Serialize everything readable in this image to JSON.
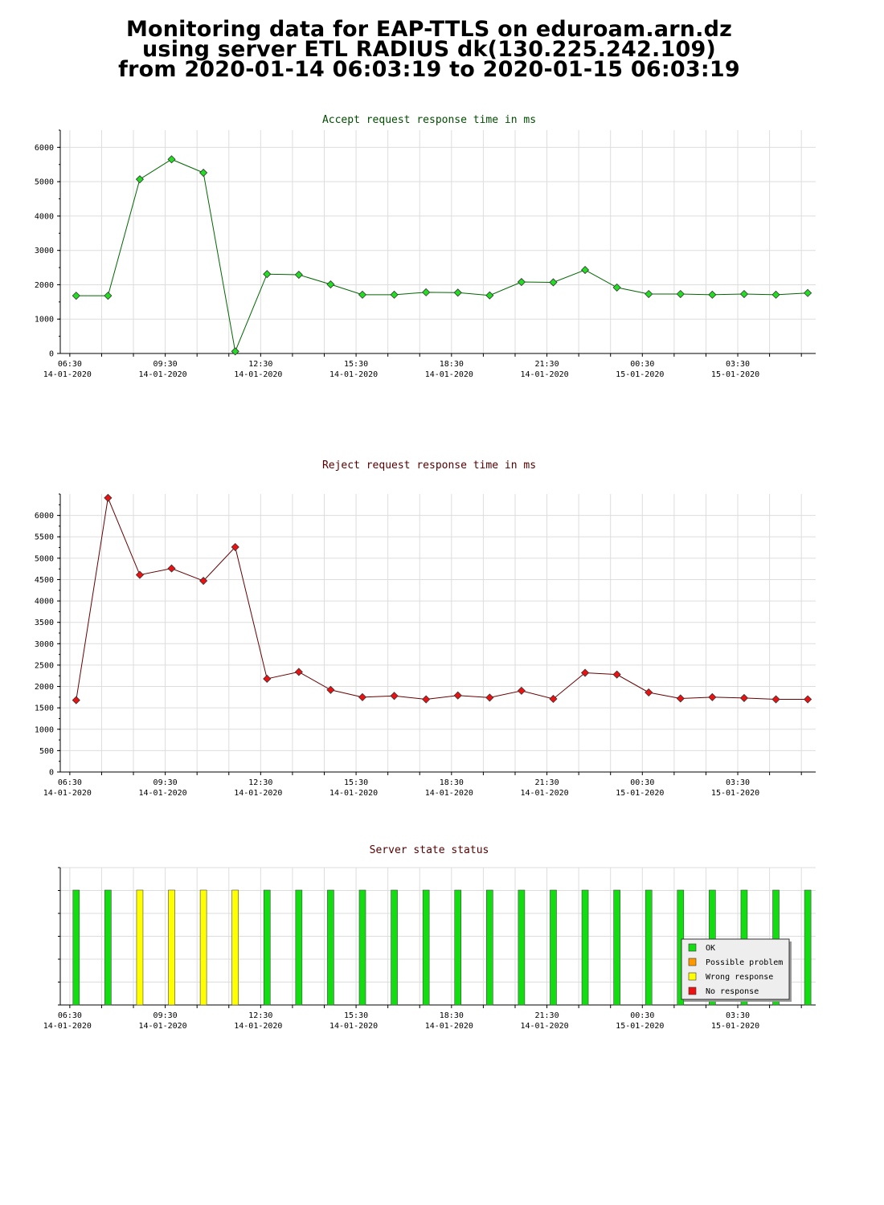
{
  "header": {
    "line1": "Monitoring data for EAP-TTLS on eduroam.arn.dz",
    "line2": "using server ETL RADIUS dk(130.225.242.109)",
    "line3": "from 2020-01-14 06:03:19 to 2020-01-15 06:03:19"
  },
  "colors": {
    "accept_title": "#004d00",
    "reject_title": "#550000",
    "status_title": "#550000",
    "accept_line": "#006600",
    "accept_point": "#22dd22",
    "reject_line": "#660000",
    "reject_point": "#ee1111",
    "ok": "#11dd11",
    "possible_problem": "#ff9900",
    "wrong_response": "#ffff00",
    "no_response": "#ee1111"
  },
  "chart_data": [
    {
      "type": "line",
      "title": "Accept request response time in ms",
      "x": [
        6.7,
        7.7,
        8.7,
        9.7,
        10.7,
        11.7,
        12.7,
        13.7,
        14.7,
        15.7,
        16.7,
        17.7,
        18.7,
        19.7,
        20.7,
        21.7,
        22.7,
        23.7,
        24.7,
        25.7,
        26.7,
        27.7,
        28.7,
        29.7
      ],
      "series": [
        {
          "values": [
            1680,
            1680,
            5070,
            5650,
            5260,
            60,
            2310,
            2290,
            2010,
            1710,
            1710,
            1780,
            1770,
            1690,
            2080,
            2070,
            2430,
            1920,
            1730,
            1730,
            1710,
            1730,
            1710,
            1760
          ]
        }
      ],
      "x_ticks": [
        {
          "x": 6.5,
          "time": "06:30",
          "date": "14-01-2020"
        },
        {
          "x": 9.5,
          "time": "09:30",
          "date": "14-01-2020"
        },
        {
          "x": 12.5,
          "time": "12:30",
          "date": "14-01-2020"
        },
        {
          "x": 15.5,
          "time": "15:30",
          "date": "14-01-2020"
        },
        {
          "x": 18.5,
          "time": "18:30",
          "date": "14-01-2020"
        },
        {
          "x": 21.5,
          "time": "21:30",
          "date": "14-01-2020"
        },
        {
          "x": 24.5,
          "time": "00:30",
          "date": "15-01-2020"
        },
        {
          "x": 27.5,
          "time": "03:30",
          "date": "15-01-2020"
        }
      ],
      "y_ticks": [
        "0",
        "1000",
        "2000",
        "3000",
        "4000",
        "5000",
        "6000"
      ],
      "xlim": [
        6.2,
        29.95
      ],
      "ylim": [
        0,
        6500
      ],
      "grid": true
    },
    {
      "type": "line",
      "title": "Reject request response time in ms",
      "x": [
        6.7,
        7.7,
        8.7,
        9.7,
        10.7,
        11.7,
        12.7,
        13.7,
        14.7,
        15.7,
        16.7,
        17.7,
        18.7,
        19.7,
        20.7,
        21.7,
        22.7,
        23.7,
        24.7,
        25.7,
        26.7,
        27.7,
        28.7,
        29.7
      ],
      "series": [
        {
          "values": [
            1680,
            6410,
            4610,
            4760,
            4470,
            5260,
            2180,
            2340,
            1920,
            1750,
            1780,
            1700,
            1790,
            1740,
            1900,
            1710,
            2320,
            2280,
            1860,
            1720,
            1750,
            1730,
            1700,
            1700
          ]
        }
      ],
      "x_ticks": [
        {
          "x": 6.5,
          "time": "06:30",
          "date": "14-01-2020"
        },
        {
          "x": 9.5,
          "time": "09:30",
          "date": "14-01-2020"
        },
        {
          "x": 12.5,
          "time": "12:30",
          "date": "14-01-2020"
        },
        {
          "x": 15.5,
          "time": "15:30",
          "date": "14-01-2020"
        },
        {
          "x": 18.5,
          "time": "18:30",
          "date": "14-01-2020"
        },
        {
          "x": 21.5,
          "time": "21:30",
          "date": "14-01-2020"
        },
        {
          "x": 24.5,
          "time": "00:30",
          "date": "15-01-2020"
        },
        {
          "x": 27.5,
          "time": "03:30",
          "date": "15-01-2020"
        }
      ],
      "y_ticks": [
        "0",
        "500",
        "1000",
        "1500",
        "2000",
        "2500",
        "3000",
        "3500",
        "4000",
        "4500",
        "5000",
        "5500",
        "6000"
      ],
      "xlim": [
        6.2,
        29.95
      ],
      "ylim": [
        0,
        6500
      ],
      "grid": true
    },
    {
      "type": "bar",
      "title": "Server state status",
      "x": [
        6.7,
        7.7,
        8.7,
        9.7,
        10.7,
        11.7,
        12.7,
        13.7,
        14.7,
        15.7,
        16.7,
        17.7,
        18.7,
        19.7,
        20.7,
        21.7,
        22.7,
        23.7,
        24.7,
        25.7,
        26.7,
        27.7,
        28.7,
        29.7
      ],
      "states": [
        "OK",
        "OK",
        "Wrong response",
        "Wrong response",
        "Wrong response",
        "Wrong response",
        "OK",
        "OK",
        "OK",
        "OK",
        "OK",
        "OK",
        "OK",
        "OK",
        "OK",
        "OK",
        "OK",
        "OK",
        "OK",
        "OK",
        "OK",
        "OK",
        "OK",
        "OK"
      ],
      "x_ticks": [
        {
          "x": 6.5,
          "time": "06:30",
          "date": "14-01-2020"
        },
        {
          "x": 9.5,
          "time": "09:30",
          "date": "14-01-2020"
        },
        {
          "x": 12.5,
          "time": "12:30",
          "date": "14-01-2020"
        },
        {
          "x": 15.5,
          "time": "15:30",
          "date": "14-01-2020"
        },
        {
          "x": 18.5,
          "time": "18:30",
          "date": "14-01-2020"
        },
        {
          "x": 21.5,
          "time": "21:30",
          "date": "14-01-2020"
        },
        {
          "x": 24.5,
          "time": "00:30",
          "date": "15-01-2020"
        },
        {
          "x": 27.5,
          "time": "03:30",
          "date": "15-01-2020"
        }
      ],
      "legend": [
        "OK",
        "Possible problem",
        "Wrong response",
        "No response"
      ],
      "legend_position": "bottom-right",
      "xlim": [
        6.2,
        29.95
      ],
      "grid": true
    }
  ]
}
